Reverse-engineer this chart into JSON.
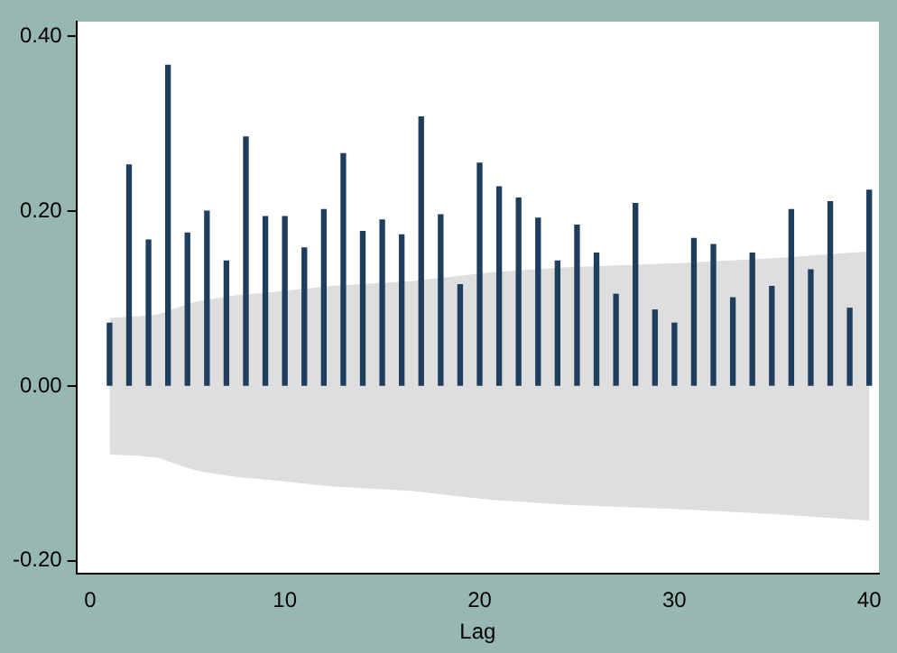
{
  "chart_data": {
    "type": "bar",
    "xlabel": "Lag",
    "x": [
      1,
      2,
      3,
      4,
      5,
      6,
      7,
      8,
      9,
      10,
      11,
      12,
      13,
      14,
      15,
      16,
      17,
      18,
      19,
      20,
      21,
      22,
      23,
      24,
      25,
      26,
      27,
      28,
      29,
      30,
      31,
      32,
      33,
      34,
      35,
      36,
      37,
      38,
      39,
      40
    ],
    "series": [
      {
        "type": "area",
        "color": "#dedede",
        "x": [
          1,
          2.5,
          3.5,
          4.5,
          5.5,
          7.5,
          9.5,
          12.5,
          16.5,
          20.5,
          24.5,
          30.5,
          35.5,
          40
        ],
        "values": [
          0.078,
          0.08,
          0.082,
          0.09,
          0.097,
          0.104,
          0.108,
          0.115,
          0.12,
          0.13,
          0.136,
          0.141,
          0.147,
          0.154
        ]
      },
      {
        "type": "area",
        "color": "#dedede",
        "x": [
          1,
          2.5,
          3.5,
          4.5,
          5.5,
          7.5,
          9.5,
          12.5,
          16.5,
          20.5,
          24.5,
          30.5,
          35.5,
          40
        ],
        "values": [
          -0.078,
          -0.08,
          -0.082,
          -0.09,
          -0.097,
          -0.104,
          -0.108,
          -0.115,
          -0.12,
          -0.13,
          -0.136,
          -0.141,
          -0.147,
          -0.154
        ]
      },
      {
        "color": "#1f3d5c",
        "values": [
          0.072,
          0.253,
          0.167,
          0.367,
          0.175,
          0.2,
          0.143,
          0.285,
          0.194,
          0.194,
          0.158,
          0.202,
          0.266,
          0.177,
          0.19,
          0.173,
          0.308,
          0.196,
          0.116,
          0.255,
          0.228,
          0.215,
          0.192,
          0.143,
          0.184,
          0.152,
          0.105,
          0.209,
          0.087,
          0.072,
          0.169,
          0.162,
          0.101,
          0.152,
          0.114,
          0.202,
          0.133,
          0.211,
          0.089,
          0.224
        ]
      }
    ],
    "xlim": [
      -0.7,
      40.5
    ],
    "xticks": [
      0,
      10,
      20,
      30,
      40
    ],
    "ylim": [
      -0.215,
      0.417
    ],
    "yticks": [
      {
        "value": -0.2,
        "label": "-0.20"
      },
      {
        "value": 0,
        "label": "0.00"
      },
      {
        "value": 0.2,
        "label": "0.20"
      },
      {
        "value": 0.4,
        "label": "0.40"
      }
    ],
    "grid": false,
    "legend": false
  }
}
